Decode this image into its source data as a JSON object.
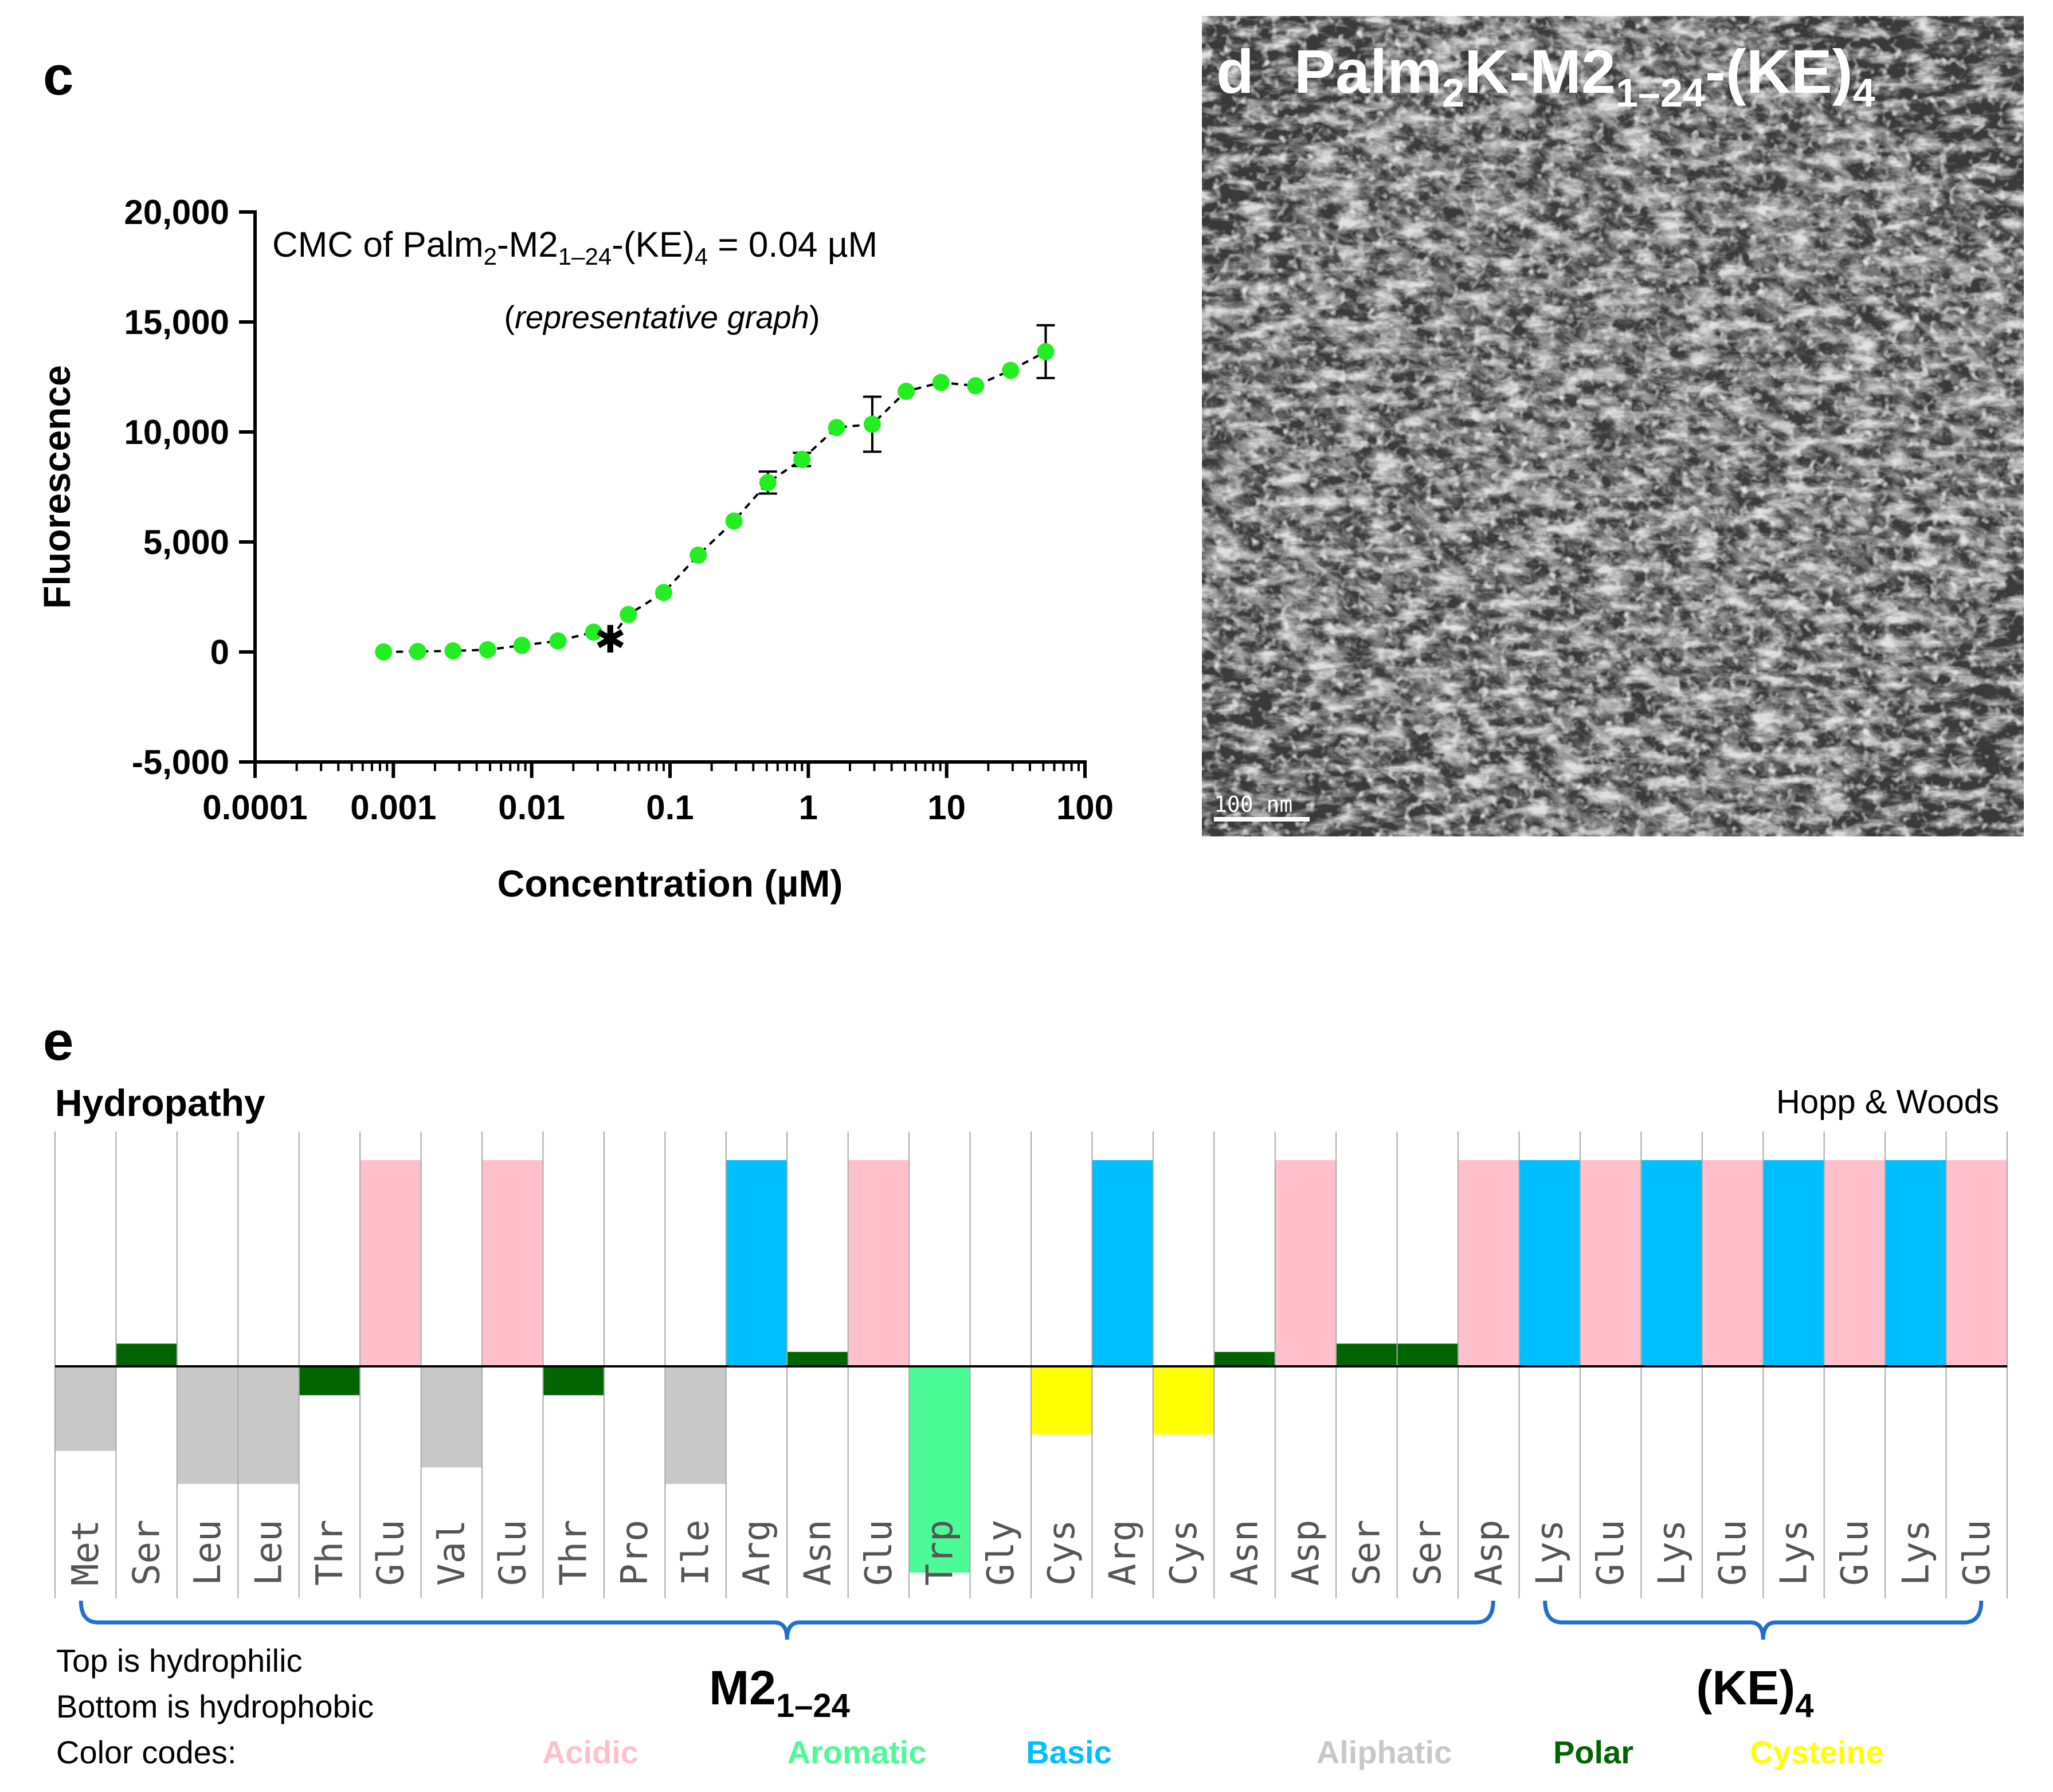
{
  "panel_c": {
    "label": "c",
    "annotation_prefix": "CMC of Palm",
    "annotation_sub1": "2",
    "annotation_mid": "-M2",
    "annotation_sub2": "1–24",
    "annotation_mid2": "-(KE)",
    "annotation_sub3": "4",
    "annotation_suffix": " = 0.04 µM",
    "subtitle_open": "(",
    "subtitle_italic": "representative graph",
    "subtitle_close": ")",
    "asterisk": "✱"
  },
  "panel_d": {
    "label": "d",
    "title_prefix": "Palm",
    "title_sub1": "2",
    "title_mid": "K-M2",
    "title_sub2": "1–24",
    "title_mid2": "-(KE)",
    "title_sub3": "4",
    "scale_bar": "100 nm"
  },
  "panel_e": {
    "label": "e",
    "title": "Hydropathy",
    "method": "Hopp & Woods",
    "group1_main": "M2",
    "group1_sub": "1–24",
    "group2_main": "(KE)",
    "group2_sub": "4",
    "note_top": "Top is hydrophilic",
    "note_bottom": "Bottom is hydrophobic",
    "legend_title": "Color codes:",
    "legend": [
      {
        "label": "Acidic",
        "color": "#ffc0cb"
      },
      {
        "label": "Aromatic",
        "color": "#4cfa96"
      },
      {
        "label": "Basic",
        "color": "#00bfff"
      },
      {
        "label": "Aliphatic",
        "color": "#c8c8c8"
      },
      {
        "label": "Polar",
        "color": "#006400"
      },
      {
        "label": "Cysteine",
        "color": "#ffff00"
      }
    ]
  },
  "chart_data": [
    {
      "type": "scatter",
      "title": "CMC of Palm2-M2 1–24-(KE)4 = 0.04 µM",
      "xlabel": "Concentration (µM)",
      "ylabel": "Fluorescence",
      "xscale": "log",
      "xlim": [
        0.0001,
        100
      ],
      "ylim": [
        -5000,
        20000
      ],
      "x_ticks": [
        "0.0001",
        "0.001",
        "0.01",
        "0.1",
        "1",
        "10",
        "100"
      ],
      "y_ticks": [
        "20,000",
        "15,000",
        "10,000",
        "5,000",
        "0",
        "-5,000"
      ],
      "x_tick_values": [
        0.0001,
        0.001,
        0.01,
        0.1,
        1,
        10,
        100
      ],
      "y_tick_values": [
        20000,
        15000,
        10000,
        5000,
        0,
        -5000
      ],
      "point_color": "#22ee22",
      "series": [
        {
          "name": "Fluorescence",
          "x": [
            0.00085,
            0.0015,
            0.0027,
            0.0048,
            0.0085,
            0.0155,
            0.028,
            0.05,
            0.09,
            0.16,
            0.29,
            0.51,
            0.9,
            1.6,
            2.9,
            5.1,
            9.1,
            16.2,
            29,
            52
          ],
          "y": [
            0,
            20,
            50,
            100,
            300,
            500,
            900,
            1700,
            2700,
            4400,
            5950,
            7700,
            8750,
            10200,
            10350,
            11850,
            12250,
            12100,
            12800,
            13650
          ],
          "err": [
            0,
            0,
            0,
            0,
            0,
            0,
            0,
            0,
            0,
            0,
            0,
            500,
            300,
            0,
            1250,
            0,
            0,
            0,
            0,
            1200
          ]
        }
      ],
      "fit_line": {
        "x": [
          0.037,
          0.05,
          0.09,
          0.16,
          0.29,
          0.51,
          0.9,
          1.6,
          2.9,
          5.1,
          9.1,
          16.2,
          29,
          52
        ],
        "y": [
          600,
          1700,
          2700,
          4400,
          5950,
          7700,
          8750,
          10200,
          10350,
          11850,
          12250,
          12100,
          12800,
          13650
        ]
      },
      "flat_line": {
        "x": [
          0.00085,
          0.0015,
          0.0027,
          0.0048,
          0.0085,
          0.0155,
          0.028,
          0.037
        ],
        "y": [
          0,
          20,
          50,
          100,
          300,
          500,
          900,
          600
        ]
      },
      "cmc_marker": {
        "x": 0.037,
        "y": 600,
        "label": "CMC"
      }
    },
    {
      "type": "bar",
      "title": "Hydropathy (Hopp & Woods)",
      "note": "positive = hydrophilic (top), negative = hydrophobic (bottom)",
      "ylim": [
        -1,
        1
      ],
      "categories": [
        "Met",
        "Ser",
        "Leu",
        "Leu",
        "Thr",
        "Glu",
        "Val",
        "Glu",
        "Thr",
        "Pro",
        "Ile",
        "Arg",
        "Asn",
        "Glu",
        "Trp",
        "Gly",
        "Cys",
        "Arg",
        "Cys",
        "Asn",
        "Asp",
        "Ser",
        "Ser",
        "Asp",
        "Lys",
        "Glu",
        "Lys",
        "Glu",
        "Lys",
        "Glu",
        "Lys",
        "Glu"
      ],
      "values": [
        -0.41,
        0.11,
        -0.57,
        -0.57,
        -0.14,
        1.0,
        -0.49,
        1.0,
        -0.14,
        0.0,
        -0.57,
        1.0,
        0.07,
        1.0,
        -1.0,
        0.0,
        -0.33,
        1.0,
        -0.33,
        0.07,
        1.0,
        0.11,
        0.11,
        1.0,
        1.0,
        1.0,
        1.0,
        1.0,
        1.0,
        1.0,
        1.0,
        1.0
      ],
      "classes": [
        "aliphatic",
        "polar",
        "aliphatic",
        "aliphatic",
        "polar",
        "acidic",
        "aliphatic",
        "acidic",
        "polar",
        "none",
        "aliphatic",
        "basic",
        "polar",
        "acidic",
        "aromatic",
        "none",
        "cysteine",
        "basic",
        "cysteine",
        "polar",
        "acidic",
        "polar",
        "polar",
        "acidic",
        "basic",
        "acidic",
        "basic",
        "acidic",
        "basic",
        "acidic",
        "basic",
        "acidic"
      ],
      "class_colors": {
        "acidic": "#ffc0cb",
        "basic": "#00bfff",
        "aliphatic": "#c8c8c8",
        "polar": "#006400",
        "aromatic": "#4cfa96",
        "cysteine": "#ffff00",
        "none": "#ffffff"
      },
      "groups": [
        {
          "label": "M2 1–24",
          "start": 0,
          "end": 23
        },
        {
          "label": "(KE)4",
          "start": 24,
          "end": 31
        }
      ]
    }
  ]
}
